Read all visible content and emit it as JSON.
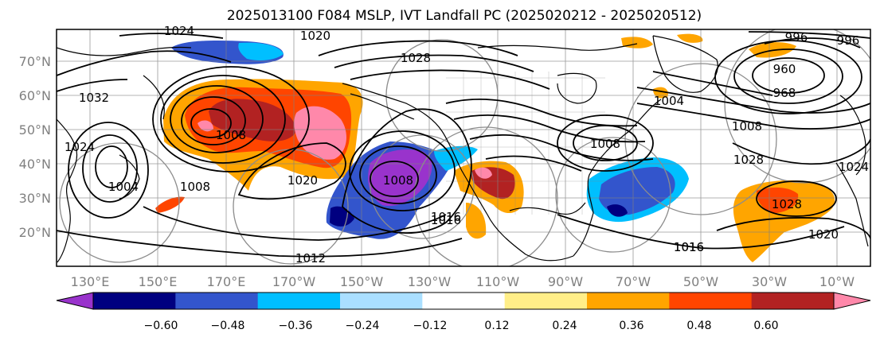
{
  "title": "2025013100 F084 MSLP, IVT Landfall PC (2025020212 - 2025020512)",
  "lat_labels": [
    "70°N",
    "60°N",
    "50°N",
    "40°N",
    "30°N",
    "20°N"
  ],
  "lon_labels": [
    "130°E",
    "150°E",
    "170°E",
    "170°W",
    "150°W",
    "130°W",
    "110°W",
    "90°W",
    "70°W",
    "50°W",
    "30°W",
    "10°W"
  ],
  "colorbar": {
    "colors": [
      "#9933cc",
      "#000080",
      "#3355cc",
      "#00bfff",
      "#aadfff",
      "#ffffff",
      "#ffee88",
      "#ffa500",
      "#ff4500",
      "#b22222",
      "#ff88aa"
    ],
    "ticks": [
      "−0.60",
      "−0.48",
      "−0.36",
      "−0.24",
      "−0.12",
      "0.12",
      "0.24",
      "0.36",
      "0.48",
      "0.60"
    ]
  },
  "contour_labels": [
    "1024",
    "1020",
    "1028",
    "1032",
    "1008",
    "1024",
    "1004",
    "1008",
    "1020",
    "1008",
    "1016",
    "1012",
    "1008",
    "1016",
    "1028",
    "1020",
    "1024",
    "960",
    "968",
    "996",
    "996",
    "1004",
    "1008",
    "1028",
    "1016",
    "1016"
  ],
  "colors": {
    "land": "#ffffff",
    "coast": "#000000",
    "grid": "#808080"
  }
}
